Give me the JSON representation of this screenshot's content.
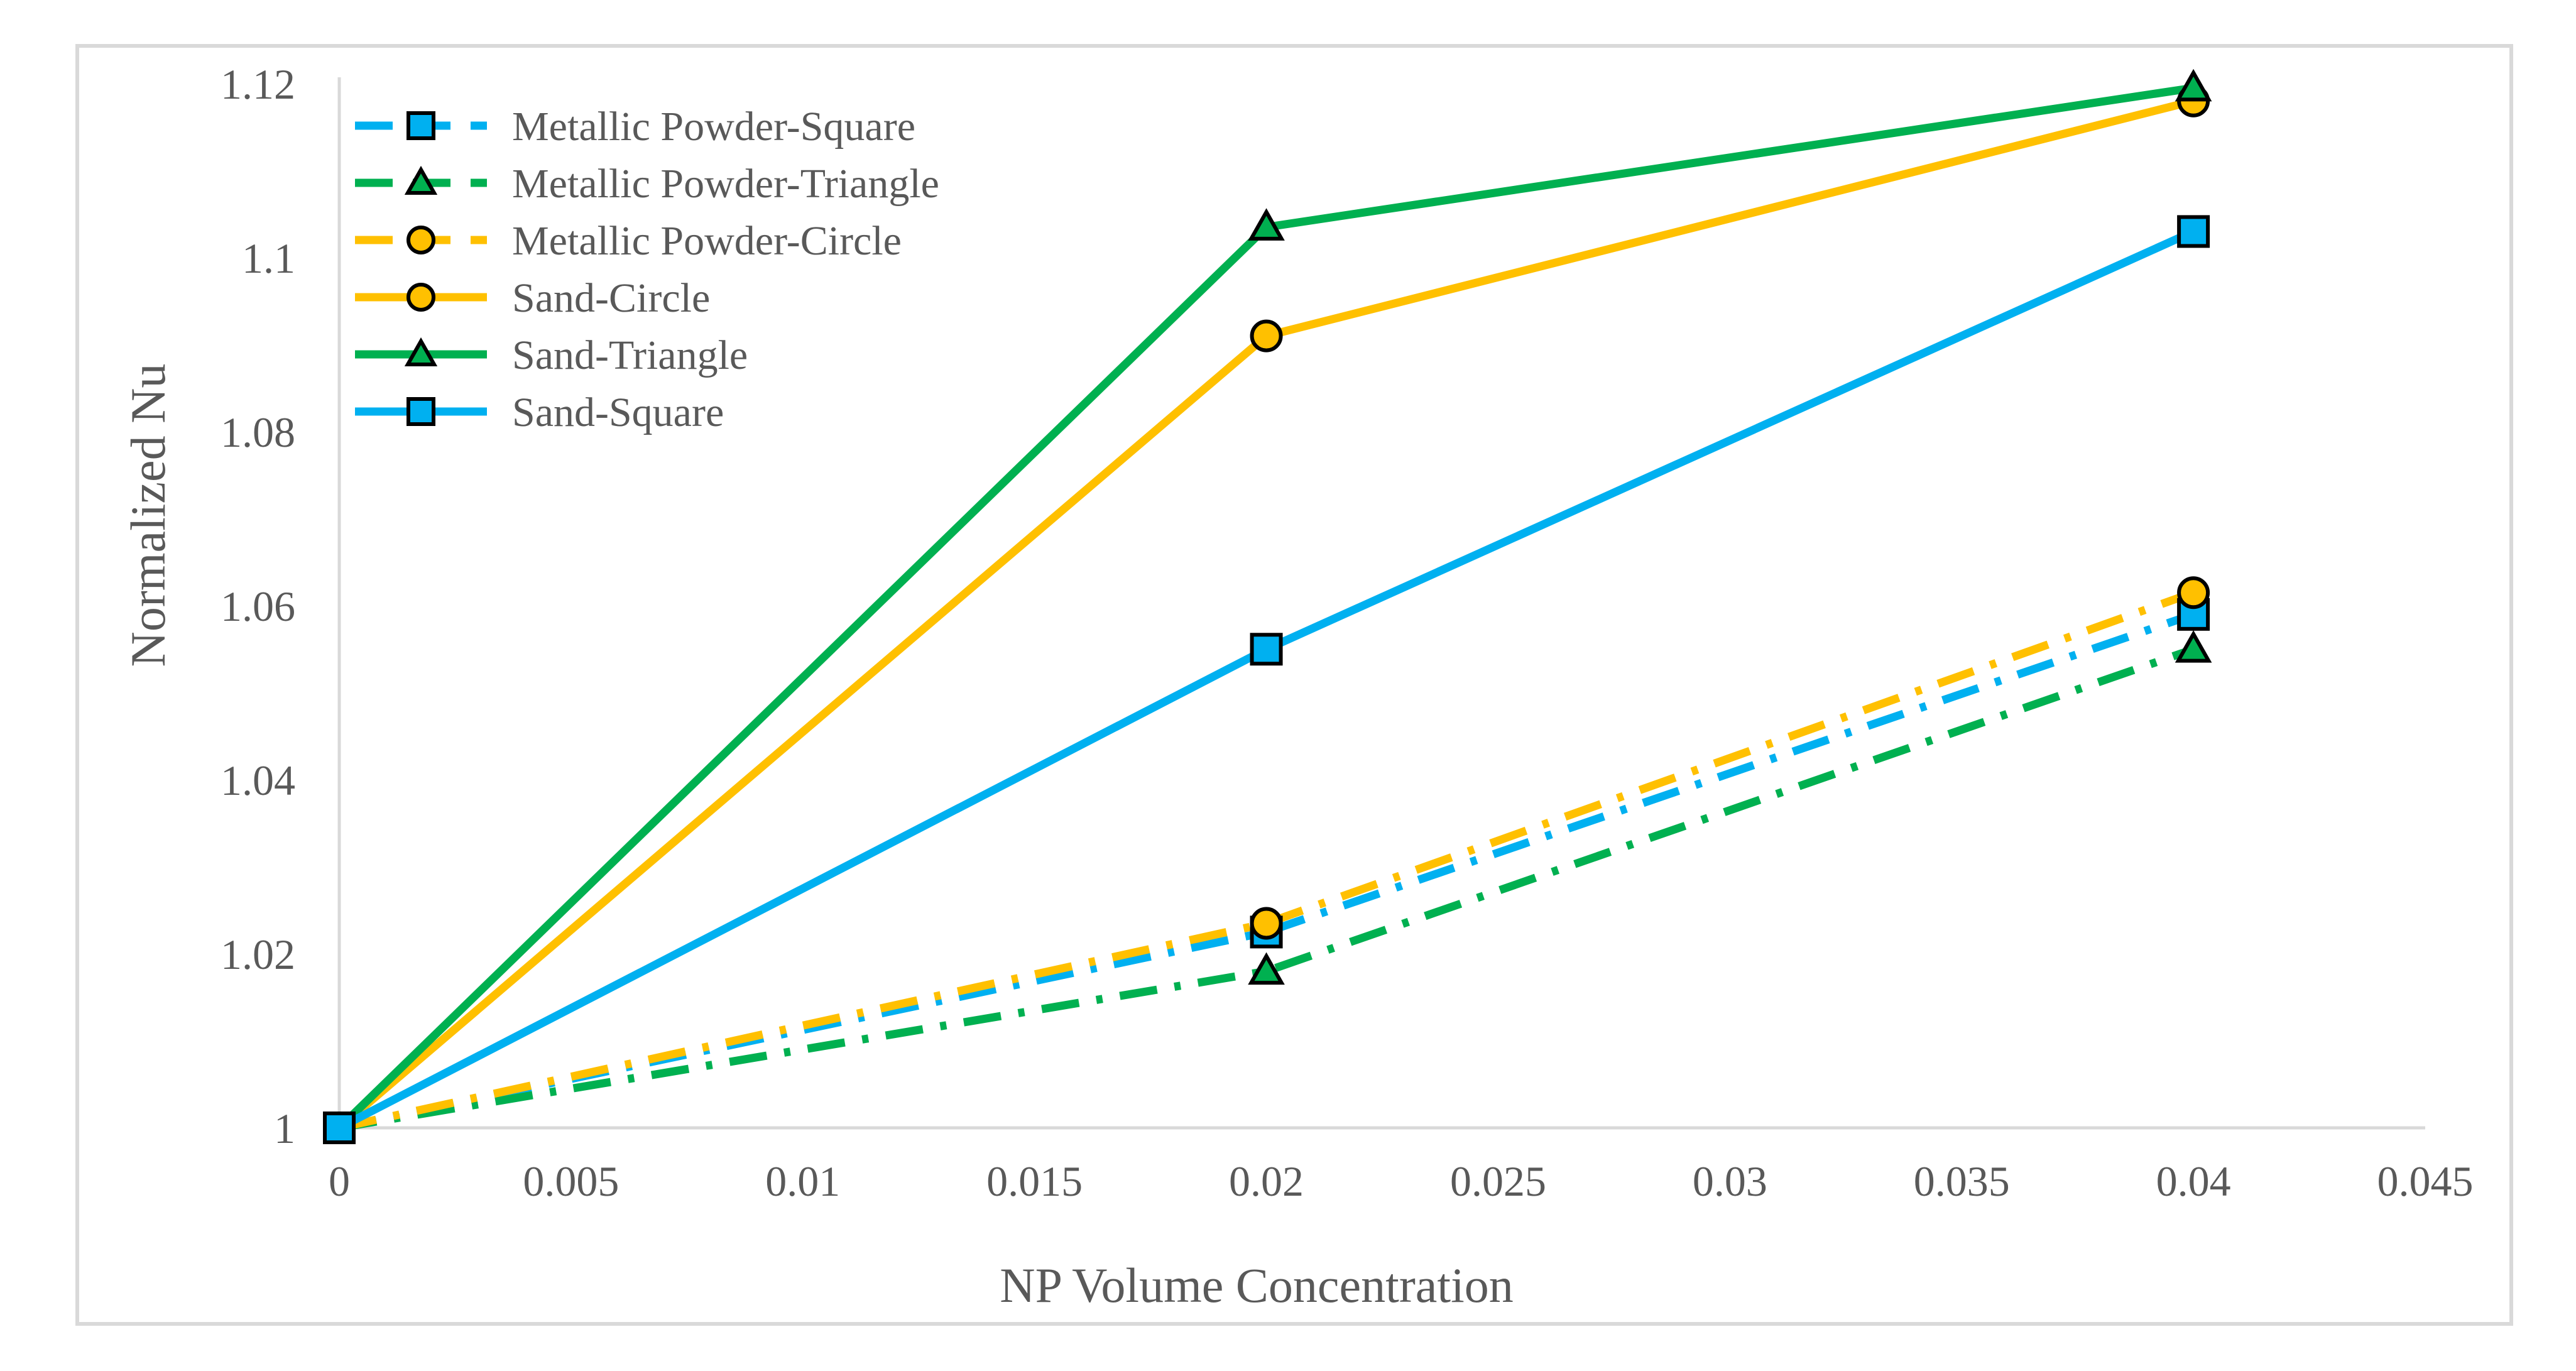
{
  "chart_data": {
    "type": "line",
    "title": "",
    "xlabel": "NP Volume Concentration",
    "ylabel": "Normalized Nu",
    "xlim": [
      0,
      0.045
    ],
    "ylim": [
      1,
      1.12
    ],
    "x_ticks": [
      "0",
      "0.005",
      "0.01",
      "0.015",
      "0.02",
      "0.025",
      "0.03",
      "0.035",
      "0.04",
      "0.045"
    ],
    "y_ticks": [
      "1",
      "1.02",
      "1.04",
      "1.06",
      "1.08",
      "1.1",
      "1.12"
    ],
    "grid": false,
    "legend_position": "top-left",
    "series": [
      {
        "name": "Metallic Powder-Square",
        "color": "#00b0f0",
        "line": "dashdot",
        "marker": "square",
        "x": [
          0,
          0.02,
          0.04
        ],
        "y": [
          1.0,
          1.0225,
          1.059
        ]
      },
      {
        "name": "Metallic Powder-Triangle",
        "color": "#00b050",
        "line": "dashdot",
        "marker": "triangle",
        "x": [
          0,
          0.02,
          0.04
        ],
        "y": [
          1.0,
          1.018,
          1.055
        ]
      },
      {
        "name": "Metallic Powder-Circle",
        "color": "#ffc000",
        "line": "dashdot",
        "marker": "circle",
        "x": [
          0,
          0.02,
          0.04
        ],
        "y": [
          1.0,
          1.0235,
          1.0615
        ]
      },
      {
        "name": "Sand-Circle",
        "color": "#ffc000",
        "line": "solid",
        "marker": "circle",
        "x": [
          0,
          0.02,
          0.04
        ],
        "y": [
          1.0,
          1.091,
          1.118
        ]
      },
      {
        "name": "Sand-Triangle",
        "color": "#00b050",
        "line": "solid",
        "marker": "triangle",
        "x": [
          0,
          0.02,
          0.04
        ],
        "y": [
          1.0,
          1.1035,
          1.1195
        ]
      },
      {
        "name": "Sand-Square",
        "color": "#00b0f0",
        "line": "solid",
        "marker": "square",
        "x": [
          0,
          0.02,
          0.04
        ],
        "y": [
          1.0,
          1.055,
          1.103
        ]
      }
    ]
  }
}
